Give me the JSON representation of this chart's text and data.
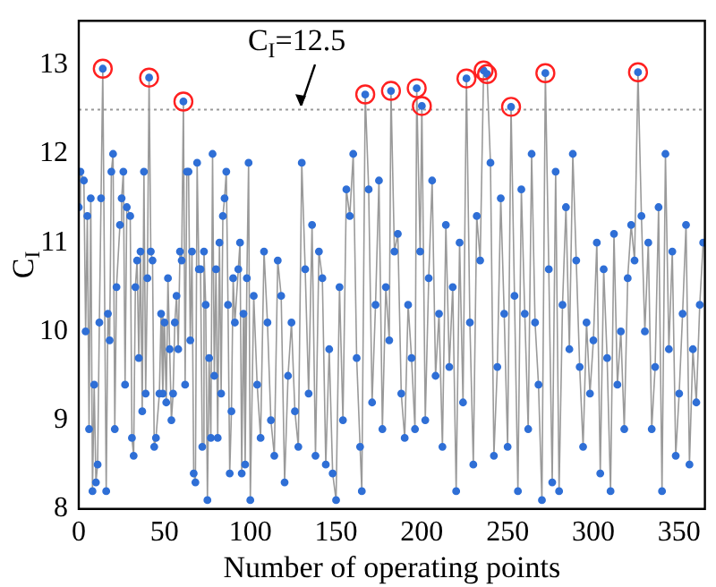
{
  "chart_data": {
    "type": "line",
    "xlabel": "Number of operating points",
    "ylabel": "C$_{I}$",
    "xlim": [
      0,
      365
    ],
    "xticks": [
      0,
      50,
      100,
      150,
      200,
      250,
      300,
      350
    ],
    "ylim": [
      8,
      13.5
    ],
    "yticks": [
      8,
      9,
      10,
      11,
      12,
      13
    ],
    "grid": false,
    "legend": false,
    "marker": "circle",
    "line_style": "solid",
    "ref_lines": [
      {
        "axis": "y",
        "value": 12.5,
        "label": "C$_{I}$=12.5",
        "color": "#999999",
        "line_style": "dotted"
      }
    ],
    "series": [
      {
        "color": "#2f6fd6",
        "x": [
          0,
          1,
          3,
          4,
          5,
          6,
          7,
          8,
          9,
          10,
          11,
          12,
          13,
          14,
          16,
          17,
          18,
          19,
          20,
          21,
          22,
          24,
          25,
          26,
          27,
          28,
          30,
          31,
          32,
          33,
          34,
          35,
          36,
          37,
          38,
          39,
          40,
          41,
          42,
          43,
          44,
          45,
          47,
          48,
          49,
          50,
          51,
          52,
          53,
          54,
          55,
          56,
          57,
          58,
          59,
          60,
          61,
          62,
          63,
          64,
          65,
          66,
          67,
          68,
          69,
          70,
          71,
          72,
          73,
          74,
          75,
          76,
          77,
          78,
          79,
          80,
          81,
          82,
          83,
          84,
          85,
          86,
          87,
          88,
          89,
          90,
          91,
          93,
          94,
          95,
          96,
          97,
          98,
          99,
          100,
          102,
          104,
          106,
          108,
          110,
          112,
          114,
          116,
          118,
          120,
          122,
          124,
          126,
          128,
          130,
          132,
          134,
          136,
          138,
          140,
          142,
          144,
          146,
          148,
          150,
          152,
          154,
          156,
          158,
          160,
          162,
          164,
          165,
          167,
          169,
          171,
          173,
          175,
          177,
          179,
          181,
          182,
          184,
          186,
          188,
          190,
          192,
          194,
          196,
          197,
          199,
          200,
          202,
          204,
          206,
          208,
          210,
          212,
          214,
          216,
          218,
          220,
          222,
          224,
          226,
          228,
          230,
          232,
          234,
          236,
          238,
          240,
          242,
          244,
          246,
          248,
          250,
          252,
          254,
          256,
          258,
          260,
          262,
          264,
          266,
          268,
          270,
          272,
          274,
          276,
          278,
          280,
          282,
          284,
          286,
          288,
          290,
          292,
          294,
          296,
          298,
          300,
          302,
          304,
          306,
          308,
          310,
          312,
          314,
          316,
          318,
          320,
          322,
          324,
          326,
          328,
          330,
          332,
          334,
          336,
          338,
          340,
          342,
          344,
          346,
          348,
          350,
          352,
          354,
          356,
          358,
          360,
          362,
          364
        ],
        "values": [
          11.4,
          11.8,
          11.7,
          10.0,
          11.3,
          8.9,
          11.5,
          8.2,
          9.4,
          8.3,
          8.5,
          10.1,
          11.5,
          12.96,
          8.2,
          10.2,
          9.9,
          11.8,
          12.0,
          8.9,
          10.5,
          11.2,
          11.5,
          11.8,
          9.4,
          11.4,
          11.3,
          8.8,
          8.6,
          10.5,
          10.8,
          9.7,
          10.9,
          9.1,
          11.8,
          9.3,
          10.6,
          12.86,
          10.9,
          10.8,
          8.7,
          8.8,
          9.3,
          10.2,
          9.3,
          10.1,
          9.2,
          10.6,
          9.8,
          9.0,
          9.3,
          10.1,
          10.4,
          9.8,
          10.9,
          10.8,
          12.59,
          9.4,
          11.8,
          11.8,
          9.9,
          10.9,
          8.4,
          8.3,
          11.9,
          10.7,
          10.7,
          8.7,
          10.9,
          10.3,
          8.1,
          9.7,
          8.8,
          12.0,
          9.5,
          10.7,
          8.8,
          11.0,
          9.3,
          11.3,
          11.5,
          11.8,
          10.3,
          8.4,
          9.1,
          10.6,
          10.1,
          10.7,
          11.0,
          8.4,
          10.2,
          8.5,
          10.6,
          11.9,
          8.1,
          10.4,
          9.4,
          8.8,
          10.9,
          10.1,
          9.0,
          8.6,
          10.8,
          10.4,
          8.3,
          9.5,
          10.1,
          9.1,
          8.7,
          11.9,
          10.7,
          9.3,
          11.2,
          8.6,
          10.9,
          10.6,
          8.5,
          9.8,
          8.4,
          8.1,
          10.5,
          9.0,
          11.6,
          11.3,
          12.0,
          9.7,
          8.7,
          8.2,
          12.67,
          11.6,
          9.2,
          10.3,
          11.7,
          8.9,
          10.5,
          9.9,
          12.71,
          10.9,
          11.1,
          9.3,
          8.8,
          10.3,
          9.7,
          8.9,
          12.74,
          10.9,
          12.54,
          9.0,
          10.6,
          11.7,
          9.5,
          10.2,
          8.7,
          11.2,
          9.6,
          10.5,
          8.2,
          11.0,
          9.2,
          12.85,
          10.1,
          8.5,
          11.3,
          10.8,
          12.94,
          12.9,
          11.9,
          8.6,
          9.6,
          11.5,
          10.2,
          8.7,
          12.53,
          10.4,
          8.2,
          11.6,
          10.2,
          8.9,
          12.0,
          10.1,
          9.4,
          8.1,
          12.91,
          10.7,
          8.3,
          11.8,
          8.2,
          10.3,
          11.4,
          9.8,
          12.0,
          10.8,
          9.6,
          8.7,
          10.1,
          9.3,
          9.9,
          11.0,
          8.4,
          10.7,
          9.7,
          8.2,
          11.1,
          9.4,
          10.0,
          8.9,
          10.6,
          11.2,
          10.8,
          12.92,
          11.3,
          10.0,
          11.0,
          8.9,
          9.6,
          11.4,
          8.2,
          12.0,
          9.8,
          10.9,
          8.6,
          9.3,
          10.2,
          11.2,
          8.5,
          9.8,
          9.2,
          10.3,
          11.0
        ]
      },
      {
        "color": "#ff2020",
        "x": [
          14,
          41,
          61,
          167,
          182,
          197,
          200,
          226,
          236,
          238,
          252,
          272,
          326
        ],
        "values": [
          12.96,
          12.86,
          12.59,
          12.67,
          12.71,
          12.74,
          12.54,
          12.85,
          12.94,
          12.9,
          12.53,
          12.91,
          12.92
        ],
        "type": "scatter"
      }
    ]
  }
}
